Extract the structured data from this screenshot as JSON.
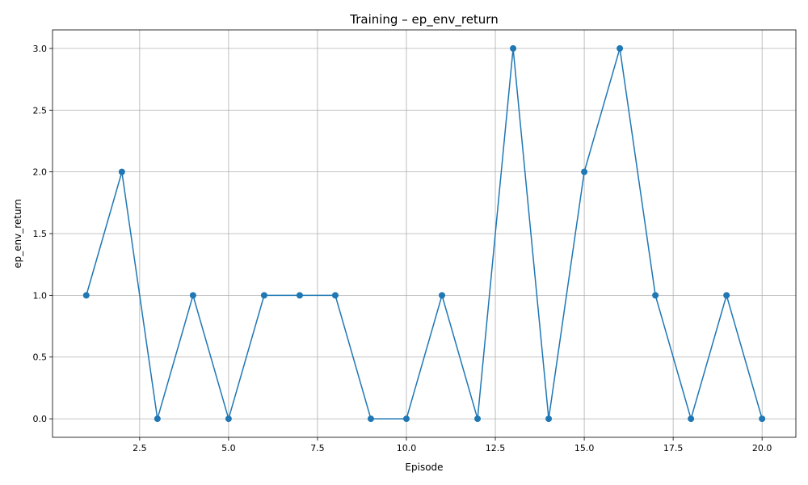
{
  "chart_data": {
    "type": "line",
    "title": "Training – ep_env_return",
    "xlabel": "Episode",
    "ylabel": "ep_env_return",
    "xlim": [
      0.05,
      20.95
    ],
    "ylim": [
      -0.15,
      3.15
    ],
    "xticks": [
      2.5,
      5.0,
      7.5,
      10.0,
      12.5,
      15.0,
      17.5,
      20.0
    ],
    "xtick_labels": [
      "2.5",
      "5.0",
      "7.5",
      "10.0",
      "12.5",
      "15.0",
      "17.5",
      "20.0"
    ],
    "yticks": [
      0.0,
      0.5,
      1.0,
      1.5,
      2.0,
      2.5,
      3.0
    ],
    "ytick_labels": [
      "0.0",
      "0.5",
      "1.0",
      "1.5",
      "2.0",
      "2.5",
      "3.0"
    ],
    "grid": true,
    "color": "#1f77b4",
    "marker": "circle",
    "series": [
      {
        "x": [
          1,
          2,
          3,
          4,
          5,
          6,
          7,
          8,
          9,
          10,
          11,
          12,
          13,
          14,
          15,
          16,
          17,
          18,
          19,
          20
        ],
        "y": [
          1,
          2,
          0,
          1,
          0,
          1,
          1,
          1,
          0,
          0,
          1,
          0,
          3,
          0,
          2,
          3,
          1,
          0,
          1,
          0
        ]
      }
    ]
  }
}
